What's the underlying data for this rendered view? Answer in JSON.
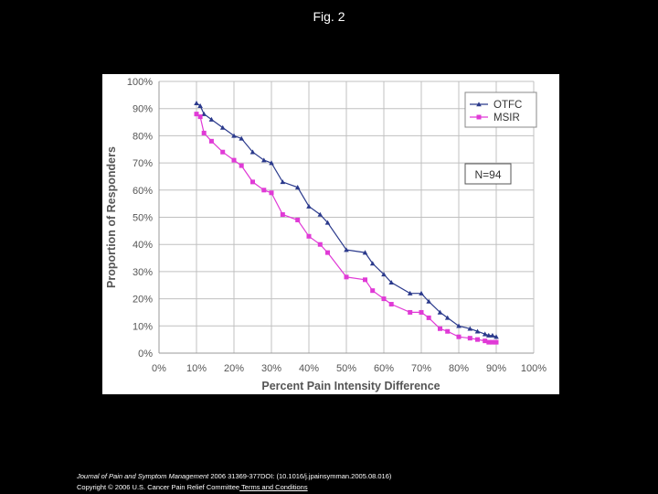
{
  "slide": {
    "title": "Fig. 2"
  },
  "footer": {
    "journal": "Journal of Pain and Symptom Management",
    "citation": " 2006 31369-377DOI: (10.1016/j.jpainsymman.2005.08.016)",
    "copyright": "Copyright © 2006 U.S. Cancer Pain Relief Committee",
    "terms_link": " Terms and Conditions"
  },
  "chart_data": {
    "type": "line",
    "title": "",
    "xlabel": "Percent Pain Intensity Difference",
    "ylabel": "Proportion of Responders",
    "xlim": [
      0,
      100
    ],
    "ylim": [
      0,
      100
    ],
    "x_ticks": [
      "0%",
      "10%",
      "20%",
      "30%",
      "40%",
      "50%",
      "60%",
      "70%",
      "80%",
      "90%",
      "100%"
    ],
    "y_ticks": [
      "0%",
      "10%",
      "20%",
      "30%",
      "40%",
      "50%",
      "60%",
      "70%",
      "80%",
      "90%",
      "100%"
    ],
    "grid": true,
    "legend_position": "top-right",
    "annotation": "N=94",
    "colors": {
      "OTFC": "#2b3a8c",
      "MSIR": "#e03ad6",
      "grid": "#c0c0c0",
      "plot_bg": "#ffffff",
      "axis_text": "#555555"
    },
    "series": [
      {
        "name": "OTFC",
        "marker": "triangle",
        "x": [
          10,
          11,
          12,
          14,
          17,
          20,
          22,
          25,
          28,
          30,
          33,
          37,
          40,
          43,
          45,
          50,
          55,
          57,
          60,
          62,
          67,
          70,
          72,
          75,
          77,
          80,
          83,
          85,
          87,
          88,
          89,
          90
        ],
        "y": [
          92,
          91,
          88,
          86,
          83,
          80,
          79,
          74,
          71,
          70,
          63,
          61,
          54,
          51,
          48,
          38,
          37,
          33,
          29,
          26,
          22,
          22,
          19,
          15,
          13,
          10,
          9,
          8,
          7,
          6.5,
          6.5,
          6
        ]
      },
      {
        "name": "MSIR",
        "marker": "square",
        "x": [
          10,
          11,
          12,
          14,
          17,
          20,
          22,
          25,
          28,
          30,
          33,
          37,
          40,
          43,
          45,
          50,
          55,
          57,
          60,
          62,
          67,
          70,
          72,
          75,
          77,
          80,
          83,
          85,
          87,
          88,
          89,
          90
        ],
        "y": [
          88,
          87,
          81,
          78,
          74,
          71,
          69,
          63,
          60,
          59,
          51,
          49,
          43,
          40,
          37,
          28,
          27,
          23,
          20,
          18,
          15,
          15,
          13,
          9,
          8,
          6,
          5.5,
          5,
          4.5,
          4,
          4,
          4
        ]
      }
    ]
  }
}
